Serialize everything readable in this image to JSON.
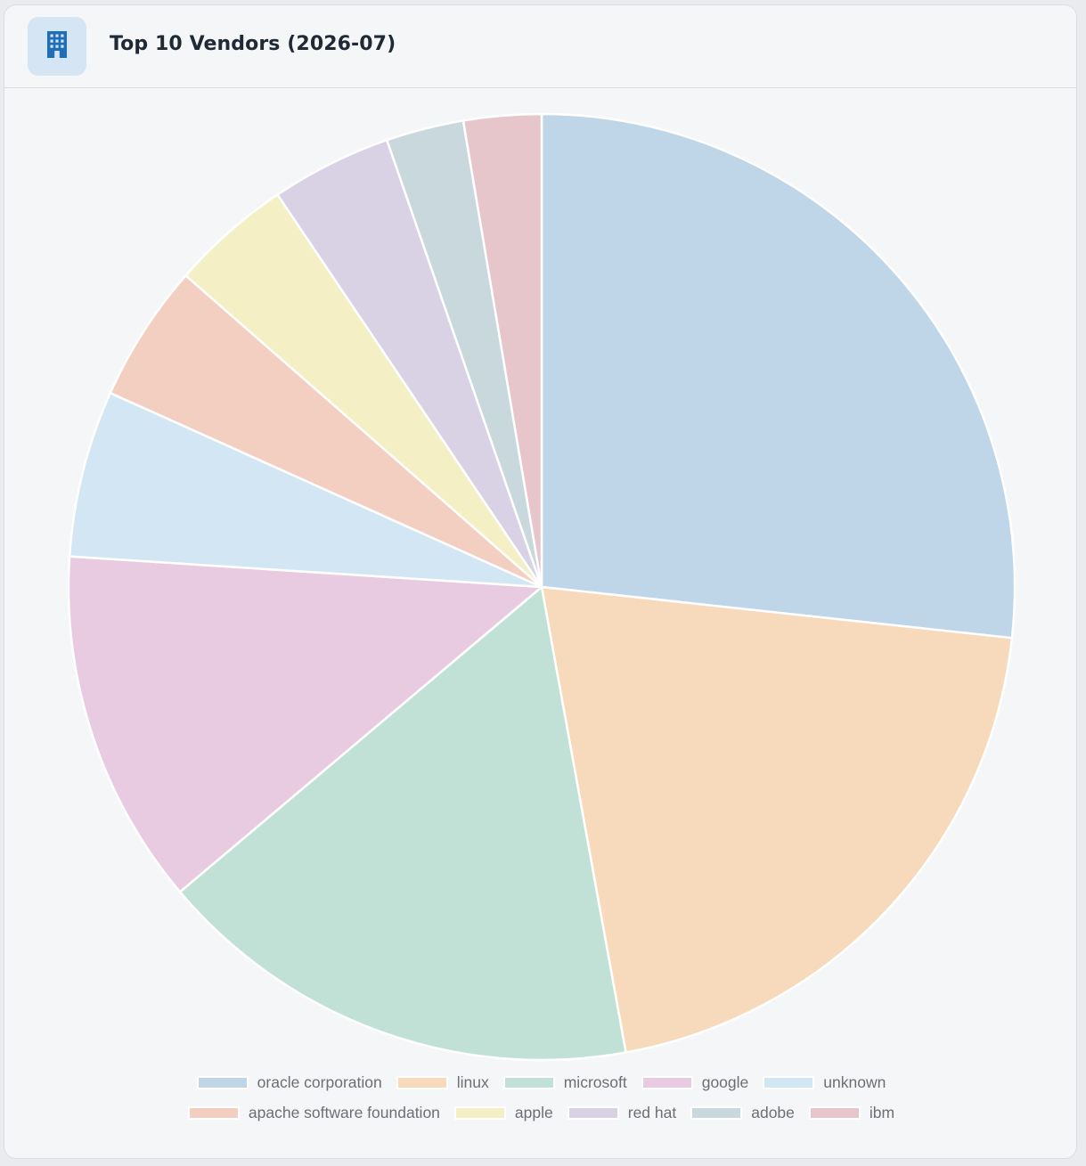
{
  "card": {
    "title": "Top 10 Vendors (2026-07)",
    "icon": "building-icon",
    "icon_color": "#1f6fb8",
    "icon_bg": "#d6e5f3"
  },
  "chart_data": {
    "type": "pie",
    "title": "Top 10 Vendors (2026-07)",
    "legend_position": "bottom",
    "slices": [
      {
        "label": "oracle corporation",
        "value": 27.2,
        "color": "#bfd5e8"
      },
      {
        "label": "linux",
        "value": 20.8,
        "color": "#f6dabb"
      },
      {
        "label": "microsoft",
        "value": 17.0,
        "color": "#c1e1d6"
      },
      {
        "label": "google",
        "value": 12.4,
        "color": "#e8cbe1"
      },
      {
        "label": "unknown",
        "value": 5.8,
        "color": "#d3e6f3"
      },
      {
        "label": "apache software foundation",
        "value": 4.8,
        "color": "#f2cfc1"
      },
      {
        "label": "apple",
        "value": 4.2,
        "color": "#f4efc4"
      },
      {
        "label": "red hat",
        "value": 4.2,
        "color": "#d8d2e4"
      },
      {
        "label": "adobe",
        "value": 2.7,
        "color": "#c8d8dd"
      },
      {
        "label": "ibm",
        "value": 2.7,
        "color": "#e6c6cb"
      }
    ]
  }
}
